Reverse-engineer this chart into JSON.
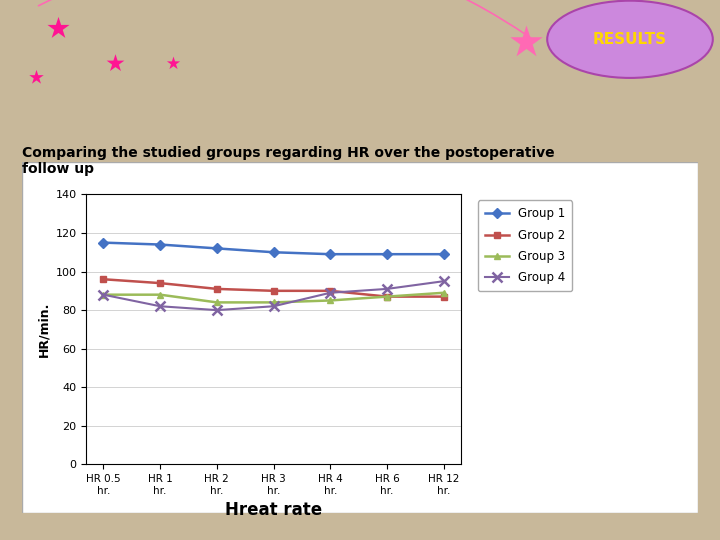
{
  "x_labels": [
    "HR 0.5\nhr.",
    "HR 1\nhr.",
    "HR 2\nhr.",
    "HR 3\nhr.",
    "HR 4\nhr.",
    "HR 6\nhr.",
    "HR 12\nhr."
  ],
  "group1": [
    115,
    114,
    112,
    110,
    109,
    109,
    109
  ],
  "group2": [
    96,
    94,
    91,
    90,
    90,
    87,
    87
  ],
  "group3": [
    88,
    88,
    84,
    84,
    85,
    87,
    89
  ],
  "group4": [
    88,
    82,
    80,
    82,
    89,
    91,
    95
  ],
  "group1_color": "#4472C4",
  "group2_color": "#C0504D",
  "group3_color": "#9BBB59",
  "group4_color": "#8064A2",
  "ylabel": "HR/min.",
  "xlabel_chart": "Hreat rate",
  "ylim_min": 0,
  "ylim_max": 140,
  "yticks": [
    0,
    20,
    40,
    60,
    80,
    100,
    120,
    140
  ],
  "legend_labels": [
    "Group 1",
    "Group 2",
    "Group 3",
    "Group 4"
  ],
  "title_text": "Comparing the studied groups regarding HR over the postoperative\nfollow up",
  "results_text": "RESULTS",
  "bg_gray": "#BEBEBE",
  "bg_tan": "#C8B89A",
  "chart_bg": "#FFFFFF",
  "title_color": "#000000",
  "results_color": "#FFD700",
  "ellipse_color": "#CC88DD"
}
